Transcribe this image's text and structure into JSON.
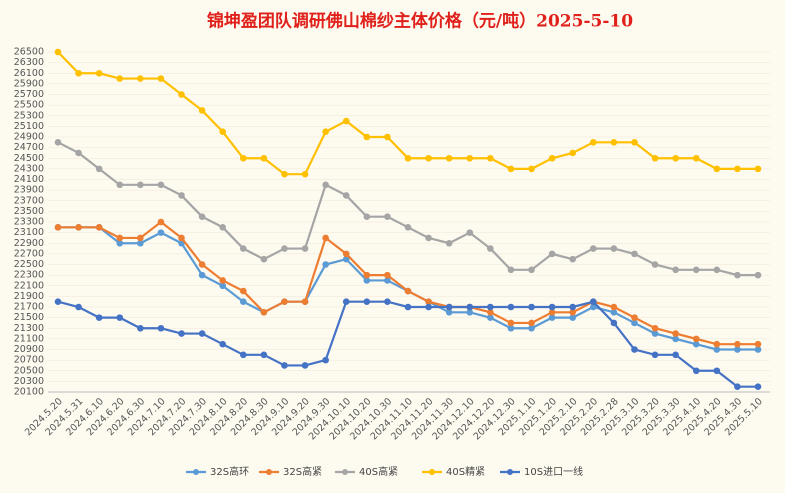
{
  "chart_data": {
    "type": "line",
    "title": "锦坤盈团队调研佛山棉纱主体价格（元/吨）2025-5-10",
    "categories": [
      "2024.5.20",
      "2024.5.31",
      "2024.6.10",
      "2024.6.20",
      "2024.6.30",
      "2024.7.10",
      "2024.7.20",
      "2024.7.30",
      "2024.8.10",
      "2024.8.20",
      "2024.8.30",
      "2024.9.10",
      "2024.9.20",
      "2024.9.30",
      "2024.10.10",
      "2024.10.20",
      "2024.10.30",
      "2024.11.10",
      "2024.11.20",
      "2024.11.30",
      "2024.12.10",
      "2024.12.20",
      "2024.12.30",
      "2025.1.10",
      "2025.1.20",
      "2025.2.10",
      "2025.2.20",
      "2025.2.28",
      "2025.3.10",
      "2025.3.20",
      "2025.3.30",
      "2025.4.10",
      "2025.4.20",
      "2025.4.30",
      "2025.5.10"
    ],
    "series": [
      {
        "name": "32S高环",
        "color": "#5b9bd5",
        "values": [
          23200,
          23200,
          23200,
          22900,
          22900,
          23100,
          22900,
          22300,
          22100,
          21800,
          21600,
          21800,
          21800,
          22500,
          22600,
          22200,
          22200,
          22000,
          21800,
          21600,
          21600,
          21500,
          21300,
          21300,
          21500,
          21500,
          21700,
          21600,
          21400,
          21200,
          21100,
          21000,
          20900,
          20900,
          20900
        ]
      },
      {
        "name": "32S高紧",
        "color": "#ed7d31",
        "values": [
          23200,
          23200,
          23200,
          23000,
          23000,
          23300,
          23000,
          22500,
          22200,
          22000,
          21600,
          21800,
          21800,
          23000,
          22700,
          22300,
          22300,
          22000,
          21800,
          21700,
          21700,
          21600,
          21400,
          21400,
          21600,
          21600,
          21800,
          21700,
          21500,
          21300,
          21200,
          21100,
          21000,
          21000,
          21000
        ]
      },
      {
        "name": "40S高紧",
        "color": "#a5a5a5",
        "values": [
          24800,
          24600,
          24300,
          24000,
          24000,
          24000,
          23800,
          23400,
          23200,
          22800,
          22600,
          22800,
          22800,
          24000,
          23800,
          23400,
          23400,
          23200,
          23000,
          22900,
          23100,
          22800,
          22400,
          22400,
          22700,
          22600,
          22800,
          22800,
          22700,
          22500,
          22400,
          22400,
          22400,
          22300,
          22300
        ]
      },
      {
        "name": "40S精紧",
        "color": "#ffc000",
        "values": [
          26500,
          26100,
          26100,
          26000,
          26000,
          26000,
          25700,
          25400,
          25000,
          24500,
          24500,
          24200,
          24200,
          25000,
          25200,
          24900,
          24900,
          24500,
          24500,
          24500,
          24500,
          24500,
          24300,
          24300,
          24500,
          24600,
          24800,
          24800,
          24800,
          24500,
          24500,
          24500,
          24300,
          24300,
          24300
        ]
      },
      {
        "name": "10S进口一线",
        "color": "#4472c4",
        "values": [
          21800,
          21700,
          21500,
          21500,
          21300,
          21300,
          21200,
          21200,
          21000,
          20800,
          20800,
          20600,
          20600,
          20700,
          21800,
          21800,
          21800,
          21700,
          21700,
          21700,
          21700,
          21700,
          21700,
          21700,
          21700,
          21700,
          21800,
          21400,
          20900,
          20800,
          20800,
          20500,
          20500,
          20200,
          20200
        ]
      }
    ],
    "ylim": [
      20100,
      26500
    ],
    "yticks": [
      20100,
      20300,
      20500,
      20700,
      20900,
      21100,
      21300,
      21500,
      21700,
      21900,
      22100,
      22300,
      22500,
      22700,
      22900,
      23100,
      23300,
      23500,
      23700,
      23900,
      24100,
      24300,
      24500,
      24700,
      24900,
      25100,
      25300,
      25500,
      25700,
      25900,
      26100,
      26300,
      26500
    ],
    "grid": true
  }
}
